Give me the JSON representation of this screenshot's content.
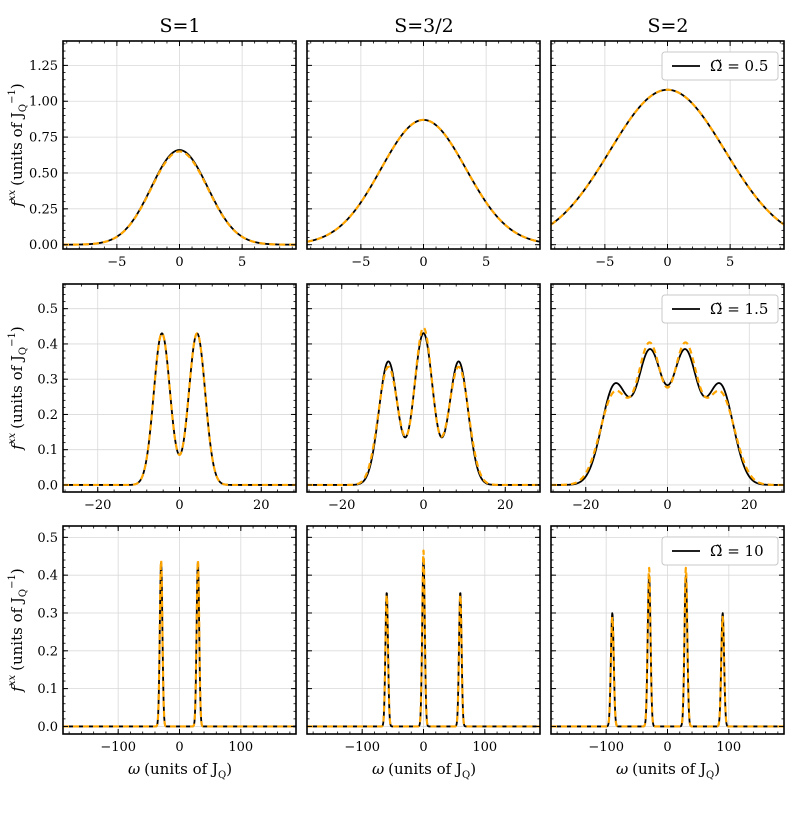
{
  "figure": {
    "columns": [
      "S=1",
      "S=3/2",
      "S=2"
    ],
    "ylabel": {
      "main": "f",
      "sup": "xx",
      "units": "(units of J",
      "sub": "Q",
      "pow": "−1",
      "close": ")"
    },
    "xlabel": {
      "main": "ω",
      "units": "(units of J",
      "sub": "Q",
      "close": ")"
    },
    "legend_labels": [
      "Ω̃ = 0.5",
      "Ω̃ = 1.5",
      "Ω̃ = 10"
    ],
    "colors": {
      "exact": "#000000",
      "approx": "#FFA500",
      "grid": "#d9d9d9"
    }
  },
  "chart_data": [
    {
      "type": "line",
      "row": 0,
      "col": 0,
      "title": "S=1",
      "xlim": [
        -9.3,
        9.3
      ],
      "ylim": [
        -0.03,
        1.42
      ],
      "xticks": [
        -5,
        0,
        5
      ],
      "xtick_labels": [
        "−5",
        "0",
        "5"
      ],
      "yticks": [
        0,
        0.25,
        0.5,
        0.75,
        1.0,
        1.25
      ],
      "ytick_labels": [
        "0.00",
        "0.25",
        "0.50",
        "0.75",
        "1.00",
        "1.25"
      ],
      "series": [
        {
          "name": "exact",
          "style": "solid",
          "components": [
            {
              "center": 0,
              "amp": 0.66,
              "sigma": 2.25
            }
          ]
        },
        {
          "name": "approx",
          "style": "dashed",
          "components": [
            {
              "center": 0,
              "amp": 0.65,
              "sigma": 2.25
            }
          ]
        }
      ]
    },
    {
      "type": "line",
      "row": 0,
      "col": 1,
      "title": "S=3/2",
      "xlim": [
        -9.3,
        9.3
      ],
      "ylim": [
        -0.03,
        1.42
      ],
      "xticks": [
        -5,
        0,
        5
      ],
      "xtick_labels": [
        "−5",
        "0",
        "5"
      ],
      "yticks": [
        0,
        0.25,
        0.5,
        0.75,
        1.0,
        1.25
      ],
      "ytick_labels": [],
      "series": [
        {
          "name": "exact",
          "style": "solid",
          "components": [
            {
              "center": 0,
              "amp": 0.87,
              "sigma": 3.4
            }
          ]
        },
        {
          "name": "approx",
          "style": "dashed",
          "components": [
            {
              "center": 0,
              "amp": 0.87,
              "sigma": 3.4
            }
          ]
        }
      ]
    },
    {
      "type": "line",
      "row": 0,
      "col": 2,
      "title": "S=2",
      "xlim": [
        -9.3,
        9.3
      ],
      "ylim": [
        -0.03,
        1.42
      ],
      "xticks": [
        -5,
        0,
        5
      ],
      "xtick_labels": [
        "−5",
        "0",
        "5"
      ],
      "yticks": [
        0,
        0.25,
        0.5,
        0.75,
        1.0,
        1.25
      ],
      "ytick_labels": [],
      "legend": {
        "label": "Ω̃ = 0.5",
        "location": "top-right"
      },
      "series": [
        {
          "name": "exact",
          "style": "solid",
          "components": [
            {
              "center": 0,
              "amp": 1.08,
              "sigma": 4.6
            }
          ]
        },
        {
          "name": "approx",
          "style": "dashed",
          "components": [
            {
              "center": 0,
              "amp": 1.08,
              "sigma": 4.6
            }
          ]
        }
      ]
    },
    {
      "type": "line",
      "row": 1,
      "col": 0,
      "xlim": [
        -28.5,
        28.5
      ],
      "ylim": [
        -0.02,
        0.57
      ],
      "xticks": [
        -20,
        0,
        20
      ],
      "xtick_labels": [
        "−20",
        "0",
        "20"
      ],
      "yticks": [
        0,
        0.1,
        0.2,
        0.3,
        0.4,
        0.5
      ],
      "ytick_labels": [
        "0.0",
        "0.1",
        "0.2",
        "0.3",
        "0.4",
        "0.5"
      ],
      "series": [
        {
          "name": "exact",
          "style": "solid",
          "components": [
            {
              "center": -4.3,
              "amp": 0.43,
              "sigma": 2.0
            },
            {
              "center": 4.3,
              "amp": 0.43,
              "sigma": 2.0
            }
          ]
        },
        {
          "name": "approx",
          "style": "dashed",
          "components": [
            {
              "center": -4.3,
              "amp": 0.43,
              "sigma": 2.0
            },
            {
              "center": 4.3,
              "amp": 0.43,
              "sigma": 2.0
            }
          ]
        }
      ]
    },
    {
      "type": "line",
      "row": 1,
      "col": 1,
      "xlim": [
        -28.5,
        28.5
      ],
      "ylim": [
        -0.02,
        0.57
      ],
      "xticks": [
        -20,
        0,
        20
      ],
      "xtick_labels": [
        "−20",
        "0",
        "20"
      ],
      "yticks": [
        0,
        0.1,
        0.2,
        0.3,
        0.4,
        0.5
      ],
      "ytick_labels": [],
      "series": [
        {
          "name": "exact",
          "style": "solid",
          "components": [
            {
              "center": -8.6,
              "amp": 0.35,
              "sigma": 2.3
            },
            {
              "center": 0,
              "amp": 0.43,
              "sigma": 2.3
            },
            {
              "center": 8.6,
              "amp": 0.35,
              "sigma": 2.3
            }
          ]
        },
        {
          "name": "approx",
          "style": "dashed",
          "components": [
            {
              "center": -8.6,
              "amp": 0.335,
              "sigma": 2.45
            },
            {
              "center": 0,
              "amp": 0.445,
              "sigma": 2.2
            },
            {
              "center": 8.6,
              "amp": 0.335,
              "sigma": 2.45
            }
          ]
        }
      ]
    },
    {
      "type": "line",
      "row": 1,
      "col": 2,
      "xlim": [
        -28.5,
        28.5
      ],
      "ylim": [
        -0.02,
        0.57
      ],
      "xticks": [
        -20,
        0,
        20
      ],
      "xtick_labels": [
        "−20",
        "0",
        "20"
      ],
      "yticks": [
        0,
        0.1,
        0.2,
        0.3,
        0.4,
        0.5
      ],
      "ytick_labels": [],
      "legend": {
        "label": "Ω̃ = 1.5",
        "location": "top-right"
      },
      "series": [
        {
          "name": "exact",
          "style": "solid",
          "components": [
            {
              "center": -12.9,
              "amp": 0.28,
              "sigma": 3.2
            },
            {
              "center": -4.3,
              "amp": 0.37,
              "sigma": 3.1
            },
            {
              "center": 4.3,
              "amp": 0.37,
              "sigma": 3.1
            },
            {
              "center": 12.9,
              "amp": 0.28,
              "sigma": 3.2
            }
          ]
        },
        {
          "name": "approx",
          "style": "dashed",
          "components": [
            {
              "center": -12.9,
              "amp": 0.26,
              "sigma": 3.5
            },
            {
              "center": -4.3,
              "amp": 0.385,
              "sigma": 3.0
            },
            {
              "center": 4.3,
              "amp": 0.385,
              "sigma": 3.0
            },
            {
              "center": 12.9,
              "amp": 0.26,
              "sigma": 3.5
            }
          ]
        }
      ]
    },
    {
      "type": "line",
      "row": 2,
      "col": 0,
      "xlim": [
        -190,
        190
      ],
      "ylim": [
        -0.02,
        0.53
      ],
      "xticks": [
        -100,
        0,
        100
      ],
      "xtick_labels": [
        "−100",
        "0",
        "100"
      ],
      "yticks": [
        0,
        0.1,
        0.2,
        0.3,
        0.4,
        0.5
      ],
      "ytick_labels": [
        "0.0",
        "0.1",
        "0.2",
        "0.3",
        "0.4",
        "0.5"
      ],
      "series": [
        {
          "name": "exact",
          "style": "solid",
          "components": [
            {
              "center": -30,
              "amp": 0.435,
              "sigma": 2.1
            },
            {
              "center": 30,
              "amp": 0.435,
              "sigma": 2.1
            }
          ]
        },
        {
          "name": "approx",
          "style": "dashed",
          "components": [
            {
              "center": -30,
              "amp": 0.44,
              "sigma": 2.1
            },
            {
              "center": 30,
              "amp": 0.44,
              "sigma": 2.1
            }
          ]
        }
      ]
    },
    {
      "type": "line",
      "row": 2,
      "col": 1,
      "xlim": [
        -190,
        190
      ],
      "ylim": [
        -0.02,
        0.53
      ],
      "xticks": [
        -100,
        0,
        100
      ],
      "xtick_labels": [
        "−100",
        "0",
        "100"
      ],
      "yticks": [
        0,
        0.1,
        0.2,
        0.3,
        0.4,
        0.5
      ],
      "ytick_labels": [],
      "series": [
        {
          "name": "exact",
          "style": "solid",
          "components": [
            {
              "center": -60,
              "amp": 0.355,
              "sigma": 2.1
            },
            {
              "center": 0,
              "amp": 0.445,
              "sigma": 2.1
            },
            {
              "center": 60,
              "amp": 0.355,
              "sigma": 2.1
            }
          ]
        },
        {
          "name": "approx",
          "style": "dashed",
          "components": [
            {
              "center": -60,
              "amp": 0.35,
              "sigma": 2.1
            },
            {
              "center": 0,
              "amp": 0.465,
              "sigma": 2.1
            },
            {
              "center": 60,
              "amp": 0.35,
              "sigma": 2.1
            }
          ]
        }
      ]
    },
    {
      "type": "line",
      "row": 2,
      "col": 2,
      "xlim": [
        -190,
        190
      ],
      "ylim": [
        -0.02,
        0.53
      ],
      "xticks": [
        -100,
        0,
        100
      ],
      "xtick_labels": [
        "−100",
        "0",
        "100"
      ],
      "yticks": [
        0,
        0.1,
        0.2,
        0.3,
        0.4,
        0.5
      ],
      "ytick_labels": [],
      "legend": {
        "label": "Ω̃ = 10",
        "location": "top-right"
      },
      "series": [
        {
          "name": "exact",
          "style": "solid",
          "components": [
            {
              "center": -90,
              "amp": 0.3,
              "sigma": 2.3
            },
            {
              "center": -30,
              "amp": 0.4,
              "sigma": 2.3
            },
            {
              "center": 30,
              "amp": 0.4,
              "sigma": 2.3
            },
            {
              "center": 90,
              "amp": 0.3,
              "sigma": 2.3
            }
          ]
        },
        {
          "name": "approx",
          "style": "dashed",
          "components": [
            {
              "center": -90,
              "amp": 0.29,
              "sigma": 2.3
            },
            {
              "center": -30,
              "amp": 0.42,
              "sigma": 2.3
            },
            {
              "center": 30,
              "amp": 0.42,
              "sigma": 2.3
            },
            {
              "center": 90,
              "amp": 0.29,
              "sigma": 2.3
            }
          ]
        }
      ]
    }
  ]
}
